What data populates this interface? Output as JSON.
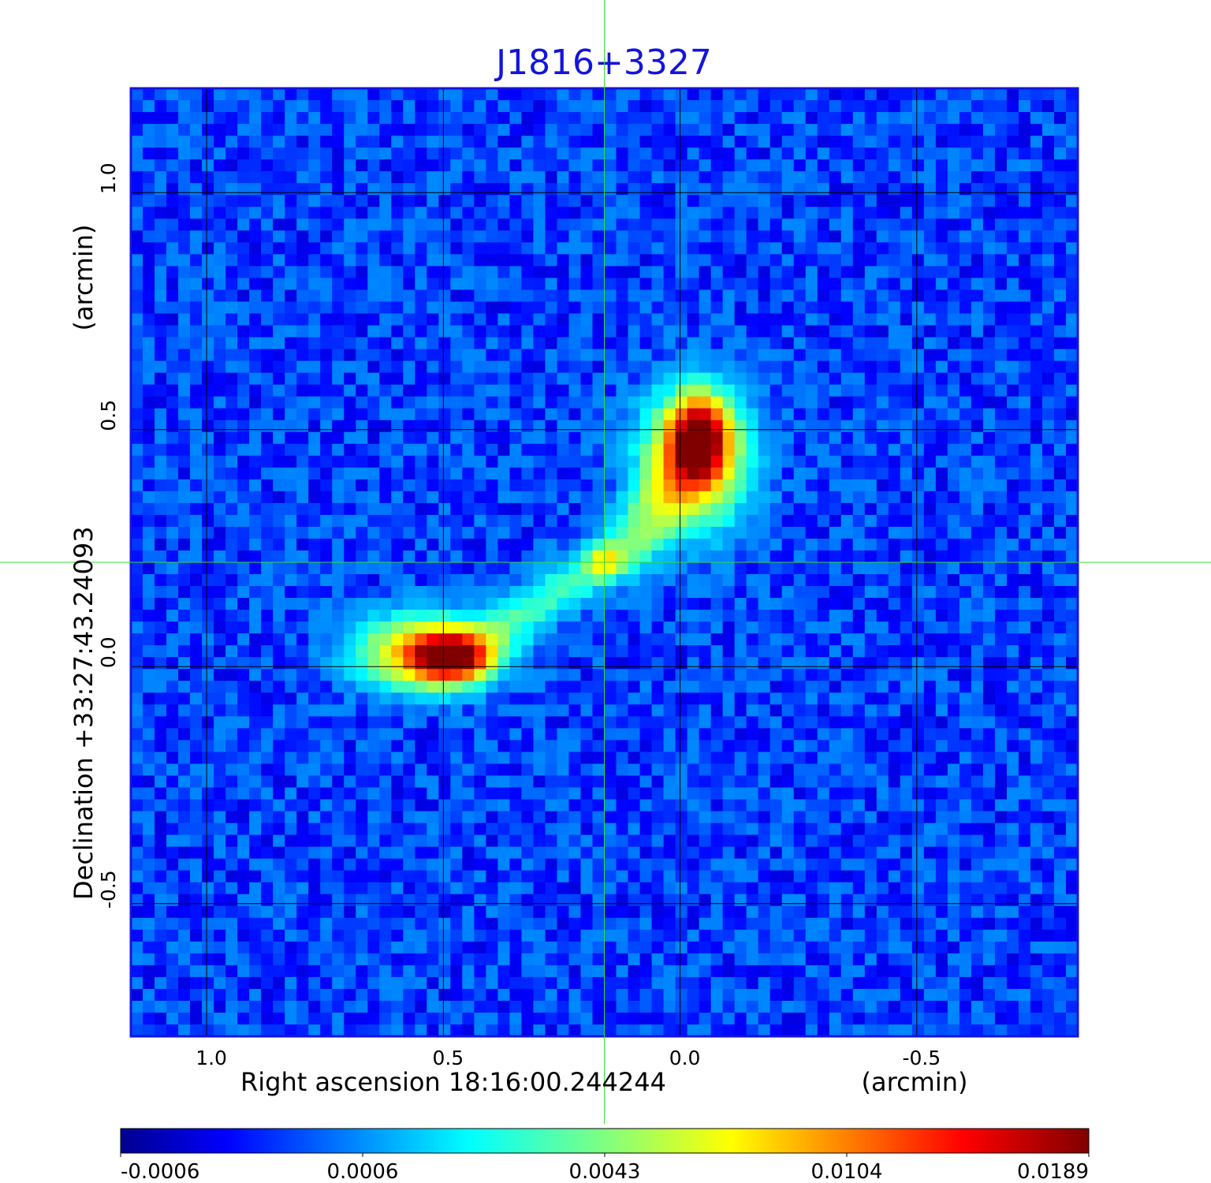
{
  "chart_data": {
    "type": "heatmap",
    "title": "J1816+3327",
    "xlabel": "Right ascension  18:16:00.244244",
    "xunit": "(arcmin)",
    "ylabel": "Declination  +33:27:43.24093",
    "yunit": "(arcmin)",
    "x_ticks": [
      "1.0",
      "0.5",
      "0.0",
      "-0.5"
    ],
    "x_tick_values": [
      1.0,
      0.5,
      0.0,
      -0.5
    ],
    "y_ticks": [
      "1.0",
      "0.5",
      "0.0",
      "-0.5"
    ],
    "y_tick_values": [
      1.0,
      0.5,
      0.0,
      -0.5
    ],
    "xlim": [
      1.16,
      -0.84
    ],
    "ylim": [
      -0.78,
      1.22
    ],
    "grid": true,
    "crosshair": {
      "x": 0.16,
      "y": 0.22
    },
    "colormap": "jet",
    "colorbar_ticks": [
      "-0.0006",
      "0.0006",
      "0.0043",
      "0.0104",
      "0.0189"
    ],
    "colorbar_values": [
      -0.0006,
      0.0006,
      0.0043,
      0.0104,
      0.0189
    ],
    "pixels": 80,
    "background_level": 0.0003,
    "sources": [
      {
        "name": "southeast lobe",
        "x": 0.49,
        "y": 0.02,
        "peak": 0.0189,
        "sx": 0.05,
        "sy": 0.03
      },
      {
        "name": "southeast lobe halo",
        "x": 0.54,
        "y": 0.03,
        "peak": 0.0085,
        "sx": 0.09,
        "sy": 0.05
      },
      {
        "name": "northwest lobe",
        "x": -0.04,
        "y": 0.48,
        "peak": 0.0189,
        "sx": 0.035,
        "sy": 0.05
      },
      {
        "name": "northwest lobe halo",
        "x": -0.03,
        "y": 0.44,
        "peak": 0.009,
        "sx": 0.07,
        "sy": 0.09
      },
      {
        "name": "core",
        "x": 0.16,
        "y": 0.22,
        "peak": 0.006,
        "sx": 0.025,
        "sy": 0.025
      }
    ],
    "jets": [
      {
        "from": [
          0.44,
          0.04
        ],
        "to": [
          0.21,
          0.19
        ],
        "level": 0.003,
        "width": 0.035
      },
      {
        "from": [
          0.11,
          0.25
        ],
        "to": [
          -0.01,
          0.41
        ],
        "level": 0.004,
        "width": 0.04
      }
    ]
  }
}
